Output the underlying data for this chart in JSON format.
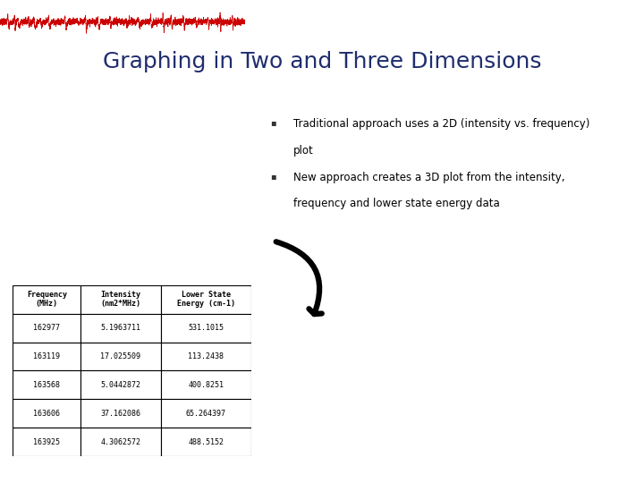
{
  "title": "Graphing in Two and Three Dimensions",
  "title_color": "#1f2d6e",
  "title_fontsize": 18,
  "bullet1_line1": "Traditional approach uses a 2D (intensity vs. frequency)",
  "bullet1_line2": "plot",
  "bullet2_line1": "New approach creates a 3D plot from the intensity,",
  "bullet2_line2": "frequency and lower state energy data",
  "table_headers": [
    "Frequency\n(MHz)",
    "Intensity\n(nm2*MHz)",
    "Lower State\nEnergy (cm-1)"
  ],
  "table_data": [
    [
      "162977",
      "5.1963711",
      "531.1015"
    ],
    [
      "163119",
      "17.025509",
      "113.2438"
    ],
    [
      "163568",
      "5.0442872",
      "400.8251"
    ],
    [
      "163606",
      "37.162086",
      "65.264397"
    ],
    [
      "163925",
      "4.3062572",
      "488.5152"
    ]
  ],
  "bg_color": "#ffffff",
  "text_color": "#000000",
  "waveform_color": "#cc0000",
  "arrow_color": "#000000"
}
